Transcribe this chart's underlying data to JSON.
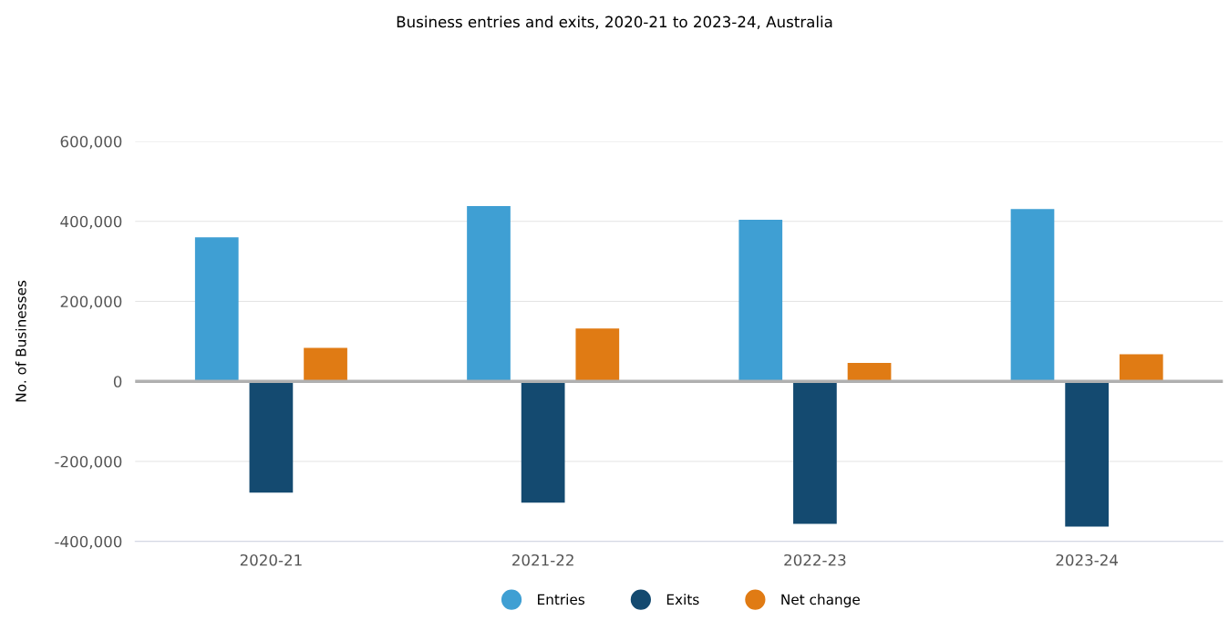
{
  "chart_data": {
    "type": "bar",
    "title": "Business entries and exits, 2020-21 to 2023-24, Australia",
    "ylabel": "No. of Businesses",
    "categories": [
      "2020-21",
      "2021-22",
      "2022-23",
      "2023-24"
    ],
    "series": [
      {
        "name": "Entries",
        "color": "#3f9fd3",
        "values": [
          360000,
          438000,
          404000,
          431000
        ]
      },
      {
        "name": "Exits",
        "color": "#144a70",
        "values": [
          -278000,
          -303000,
          -356000,
          -363000
        ]
      },
      {
        "name": "Net change",
        "color": "#e07b14",
        "values": [
          84000,
          132000,
          46000,
          68000
        ]
      }
    ],
    "ylim": [
      -400000,
      600000
    ],
    "yticks": [
      {
        "value": -400000,
        "label": "-400,000"
      },
      {
        "value": -200000,
        "label": "-200,000"
      },
      {
        "value": 0,
        "label": "0"
      },
      {
        "value": 200000,
        "label": "200,000"
      },
      {
        "value": 400000,
        "label": "400,000"
      },
      {
        "value": 600000,
        "label": "600,000"
      }
    ],
    "ref_lines": [
      {
        "axis": "y",
        "value": 0,
        "color": "#b0b0b0"
      }
    ],
    "grid": "y",
    "legend": "bottom"
  }
}
